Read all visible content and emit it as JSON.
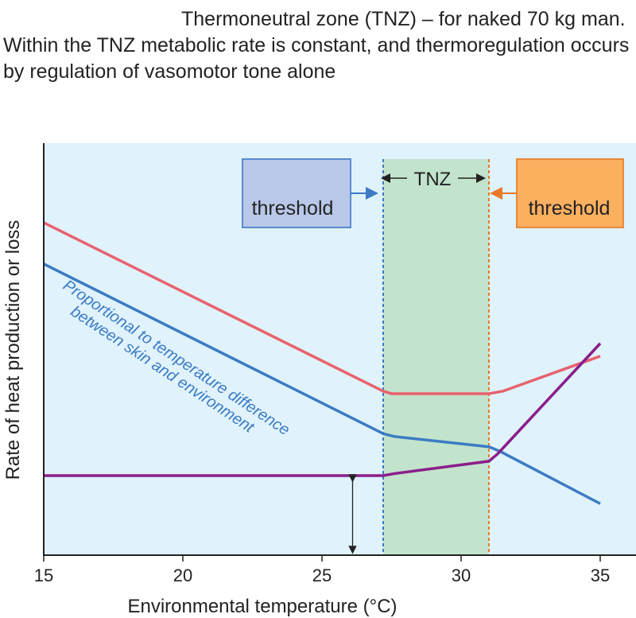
{
  "chart_data": {
    "type": "line",
    "title": "Thermoneutral zone (TNZ) – for naked 70 kg man. Within the TNZ metabolic rate is constant, and thermoregulation occurs by regulation of vasomotor tone alone",
    "xlabel": "Environmental temperature (°C)",
    "ylabel": "Rate of heat production or loss",
    "xlim": [
      15,
      37.5
    ],
    "ylim": [
      0,
      100
    ],
    "xticks": [
      "15",
      "20",
      "25",
      "30",
      "35"
    ],
    "xtick_values": [
      15,
      20,
      25,
      30,
      35
    ],
    "tnz": {
      "label": "TNZ",
      "lower": 27.2,
      "upper": 31.0
    },
    "threshold_lower_label": "threshold",
    "threshold_upper_label": "threshold",
    "annotation": "Proportional to temperature difference between skin and environment",
    "colors": {
      "background": "#e0f2fc",
      "tnz": "#c3e4cc",
      "red": "#e8626e",
      "blue": "#3b7cc4",
      "purple": "#8a1e8c",
      "lower_box": "#b9c8e8",
      "upper_box": "#fbb060",
      "orange": "#e87a2a"
    },
    "series": [
      {
        "name": "red",
        "color": "#e8626e",
        "x": [
          15,
          27.2,
          27.5,
          31,
          31.5,
          35
        ],
        "y": [
          80.7,
          39.8,
          39.2,
          39.2,
          39.8,
          48.3
        ]
      },
      {
        "name": "blue",
        "color": "#3b7cc4",
        "x": [
          15,
          27.2,
          27.6,
          31,
          31.4,
          35
        ],
        "y": [
          70.7,
          29.5,
          28.8,
          26.3,
          25.2,
          12.5
        ]
      },
      {
        "name": "purple",
        "color": "#8a1e8c",
        "x": [
          15,
          27.2,
          27.6,
          31,
          31.3,
          35
        ],
        "y": [
          19.3,
          19.3,
          19.8,
          22.8,
          24.5,
          51.4
        ]
      }
    ],
    "double_arrow": {
      "x": 26.1,
      "from": 0,
      "to": 19.3
    }
  }
}
